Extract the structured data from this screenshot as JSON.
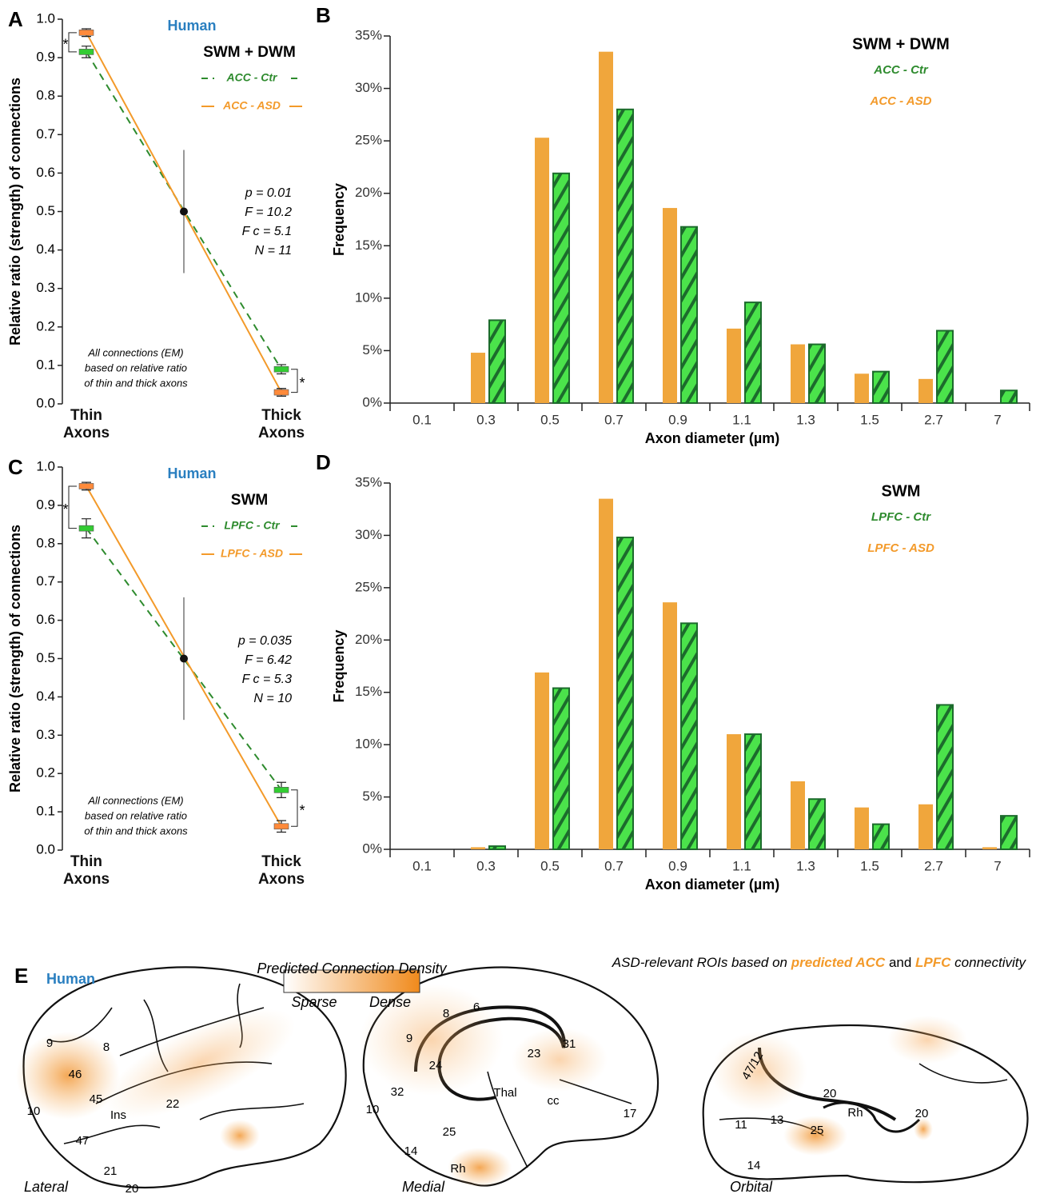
{
  "chart_data": [
    {
      "type": "line",
      "panel": "A",
      "subtitle": "Human",
      "legend_title": "SWM + DWM",
      "ylabel": "Relative ratio (strength) of connections",
      "categories": [
        "Thin Axons",
        "Thick Axons"
      ],
      "series": [
        {
          "name": "ACC - Ctr",
          "color": "#2e8b2e",
          "marker_color": "#33cc33",
          "dash": true,
          "values": [
            0.915,
            0.09
          ],
          "errors": [
            0.015,
            0.012
          ]
        },
        {
          "name": "ACC - ASD",
          "color": "#f39a2a",
          "marker_color": "#ff8a3a",
          "dash": false,
          "values": [
            0.965,
            0.03
          ],
          "errors": [
            0.01,
            0.01
          ]
        }
      ],
      "midpoint": {
        "value": 0.5,
        "range": [
          0.34,
          0.66
        ]
      },
      "stats": [
        "p = 0.01",
        "F = 10.2",
        "F c = 5.1",
        "N = 11"
      ],
      "note": [
        "All connections (EM)",
        "based on relative ratio",
        "of thin and thick axons"
      ],
      "significance": [
        "*",
        "*"
      ],
      "ylim": [
        0,
        1.0
      ],
      "yticks": [
        {
          "value": 0,
          "label": "0.0"
        },
        0.1,
        0.2,
        0.3,
        0.4,
        0.5,
        0.6,
        0.7,
        0.8,
        0.9,
        {
          "value": 1,
          "label": "1.0"
        }
      ]
    },
    {
      "type": "bar",
      "panel": "B",
      "legend_title": "SWM + DWM",
      "xlabel": "Axon diameter (µm)",
      "ylabel": "Frequency",
      "categories": [
        "0.1",
        "0.3",
        "0.5",
        "0.7",
        "0.9",
        "1.1",
        "1.3",
        "1.5",
        "2.7",
        "7"
      ],
      "series": [
        {
          "name": "ACC - ASD",
          "color": "#f0a63c",
          "hatch": false,
          "values": [
            0,
            4.8,
            25.3,
            33.5,
            18.6,
            7.1,
            5.6,
            2.8,
            2.3,
            0
          ]
        },
        {
          "name": "ACC - Ctr",
          "color": "#4be34b",
          "hatch": true,
          "values": [
            0,
            7.9,
            21.9,
            28.0,
            16.8,
            9.6,
            5.6,
            3.0,
            6.9,
            1.2
          ]
        }
      ],
      "ylim": [
        0,
        35
      ],
      "yticks": [
        {
          "value": 0,
          "label": "0%"
        },
        {
          "value": 5,
          "label": "5%"
        },
        {
          "value": 10,
          "label": "10%"
        },
        {
          "value": 15,
          "label": "15%"
        },
        {
          "value": 20,
          "label": "20%"
        },
        {
          "value": 25,
          "label": "25%"
        },
        {
          "value": 30,
          "label": "30%"
        },
        {
          "value": 35,
          "label": "35%"
        }
      ]
    },
    {
      "type": "line",
      "panel": "C",
      "subtitle": "Human",
      "legend_title": "SWM",
      "ylabel": "Relative ratio (strength) of connections",
      "categories": [
        "Thin Axons",
        "Thick Axons"
      ],
      "series": [
        {
          "name": "LPFC - Ctr",
          "color": "#2e8b2e",
          "marker_color": "#33cc33",
          "dash": true,
          "values": [
            0.84,
            0.157
          ],
          "errors": [
            0.025,
            0.02
          ]
        },
        {
          "name": "LPFC - ASD",
          "color": "#f39a2a",
          "marker_color": "#ff8a3a",
          "dash": false,
          "values": [
            0.95,
            0.062
          ],
          "errors": [
            0.01,
            0.015
          ]
        }
      ],
      "midpoint": {
        "value": 0.5,
        "range": [
          0.34,
          0.66
        ]
      },
      "stats": [
        "p = 0.035",
        "F = 6.42",
        "F c = 5.3",
        "N = 10"
      ],
      "note": [
        "All connections (EM)",
        "based on relative ratio",
        "of thin and thick axons"
      ],
      "significance": [
        "*",
        "*"
      ],
      "ylim": [
        0,
        1.0
      ],
      "yticks": [
        {
          "value": 0,
          "label": "0.0"
        },
        0.1,
        0.2,
        0.3,
        0.4,
        0.5,
        0.6,
        0.7,
        0.8,
        0.9,
        {
          "value": 1,
          "label": "1.0"
        }
      ]
    },
    {
      "type": "bar",
      "panel": "D",
      "legend_title": "SWM",
      "xlabel": "Axon diameter (µm)",
      "ylabel": "Frequency",
      "categories": [
        "0.1",
        "0.3",
        "0.5",
        "0.7",
        "0.9",
        "1.1",
        "1.3",
        "1.5",
        "2.7",
        "7"
      ],
      "series": [
        {
          "name": "LPFC - ASD",
          "color": "#f0a63c",
          "hatch": false,
          "values": [
            0,
            0.2,
            16.9,
            33.5,
            23.6,
            11.0,
            6.5,
            4.0,
            4.3,
            0.2
          ]
        },
        {
          "name": "LPFC - Ctr",
          "color": "#4be34b",
          "hatch": true,
          "values": [
            0,
            0.3,
            15.4,
            29.8,
            21.6,
            11.0,
            4.8,
            2.4,
            13.8,
            3.2
          ]
        }
      ],
      "ylim": [
        0,
        35
      ],
      "yticks": [
        {
          "value": 0,
          "label": "0%"
        },
        {
          "value": 5,
          "label": "5%"
        },
        {
          "value": 10,
          "label": "10%"
        },
        {
          "value": 15,
          "label": "15%"
        },
        {
          "value": 20,
          "label": "20%"
        },
        {
          "value": 25,
          "label": "25%"
        },
        {
          "value": 30,
          "label": "30%"
        },
        {
          "value": 35,
          "label": "35%"
        }
      ]
    }
  ],
  "panel_e": {
    "label": "E",
    "subtitle": "Human",
    "legend_title": "Predicted Connection Density",
    "legend_low": "Sparse",
    "legend_high": "Dense",
    "caption_parts": [
      "ASD-relevant ROIs based on",
      "predicted ACC",
      "and",
      "LPFC",
      "connectivity"
    ],
    "views": [
      {
        "name": "Lateral",
        "regions": [
          "9",
          "8",
          "46",
          "45",
          "10",
          "Ins",
          "22",
          "47",
          "21",
          "20"
        ]
      },
      {
        "name": "Medial",
        "regions": [
          "8",
          "6",
          "9",
          "24",
          "23",
          "31",
          "32",
          "Thal",
          "cc",
          "10",
          "25",
          "17",
          "14",
          "Rh"
        ]
      },
      {
        "name": "Orbital",
        "regions": [
          "47/12",
          "20",
          "Rh",
          "11",
          "13",
          "25",
          "20",
          "14"
        ]
      }
    ]
  }
}
